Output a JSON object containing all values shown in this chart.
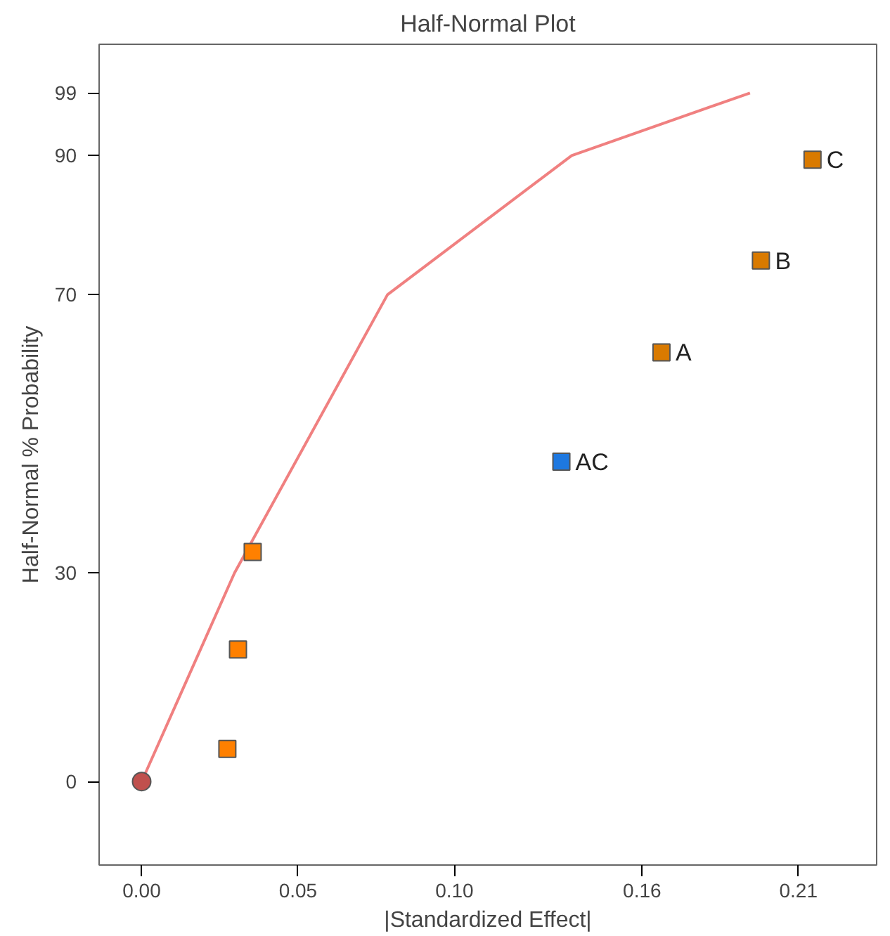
{
  "chart_data": {
    "type": "scatter",
    "title": "Half-Normal Plot",
    "xlabel": "|Standardized Effect|",
    "ylabel": "Half-Normal % Probability",
    "xlim": [
      -0.0136,
      0.235
    ],
    "ylim": [
      -12,
      106
    ],
    "xticks": [
      {
        "value": 0,
        "label": "0.00"
      },
      {
        "value": 0.05,
        "label": "0.05"
      },
      {
        "value": 0.1,
        "label": "0.10"
      },
      0.16,
      0.21
    ],
    "yticks": [
      0,
      30,
      70,
      90,
      99
    ],
    "grid": false,
    "series": [
      {
        "type": "line",
        "color": "#f08080",
        "x": [
          0,
          0.0297,
          0.0786,
          0.1375,
          0.1945
        ],
        "values": [
          0,
          30,
          70,
          90,
          99
        ],
        "marker": "none"
      },
      {
        "color": "#c0504d",
        "x": [
          0
        ],
        "values": [
          0
        ],
        "marker": "circle"
      },
      {
        "color": "#ff8000",
        "x": [
          0.0274,
          0.0308,
          0.0355
        ],
        "values": [
          4.7,
          19.0,
          33.0
        ],
        "marker": "square"
      },
      {
        "color": "#d97a00",
        "x": [
          0.1662,
          0.198,
          0.2145
        ],
        "values": [
          61.7,
          74.9,
          89.4
        ],
        "marker": "square"
      },
      {
        "color": "#1e78e0",
        "x": [
          0.1342
        ],
        "values": [
          46.0
        ],
        "marker": "square"
      }
    ],
    "annotations": [
      {
        "text": "A",
        "x": 0.1662,
        "y": 61.7
      },
      {
        "text": "B",
        "x": 0.198,
        "y": 74.9
      },
      {
        "text": "C",
        "x": 0.2145,
        "y": 89.4
      },
      {
        "text": "AC",
        "x": 0.1342,
        "y": 46.0
      }
    ]
  }
}
